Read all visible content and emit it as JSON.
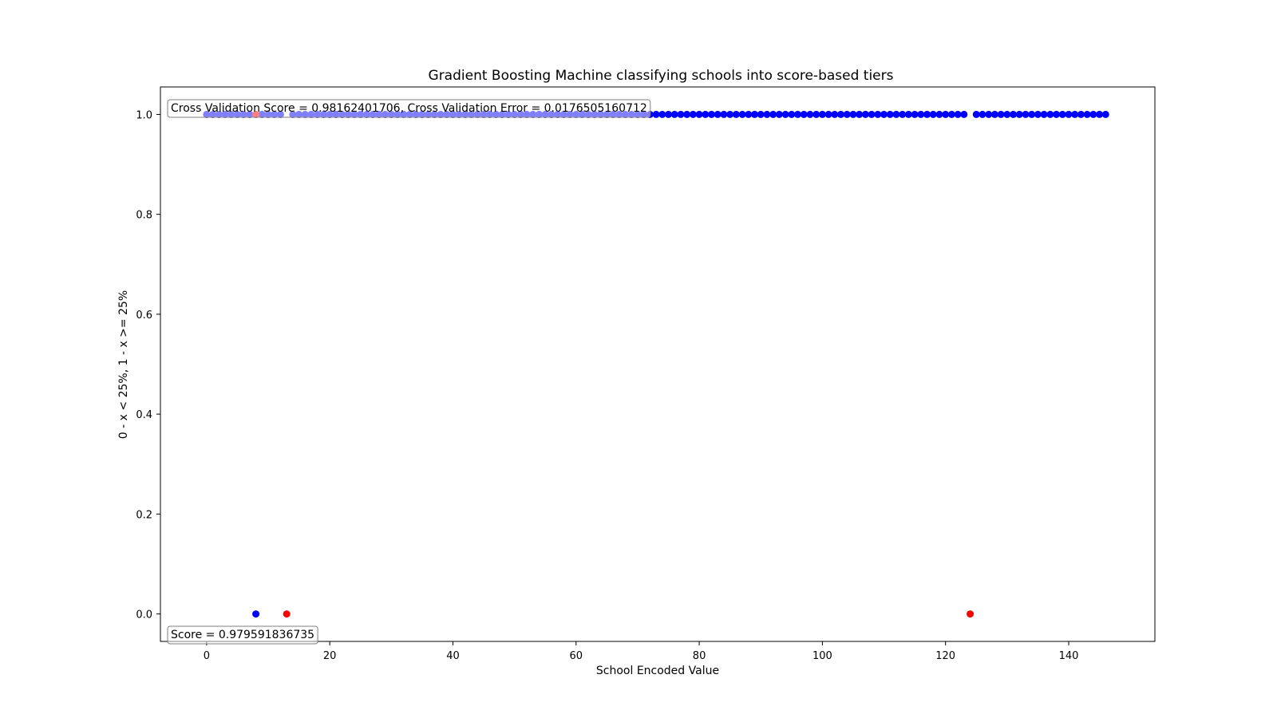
{
  "chart_data": {
    "type": "scatter",
    "title": "Gradient Boosting Machine classifying schools into score-based tiers",
    "xlabel": "School Encoded Value",
    "ylabel": "0 - x < 25%, 1 - x >= 25%",
    "xlim": [
      -7.5,
      154
    ],
    "ylim": [
      -0.055,
      1.055
    ],
    "x_ticks": [
      "0",
      "20",
      "40",
      "60",
      "80",
      "100",
      "120",
      "140"
    ],
    "y_ticks": [
      "0.0",
      "0.2",
      "0.4",
      "0.6",
      "0.8",
      "1.0"
    ],
    "grid": false,
    "series": [
      {
        "color": "#0000ff",
        "points": "all x 0–146 at y=1.0 except x=8 (y=0.0), x=13 and x=124 (absent)"
      },
      {
        "color": "#ff0000",
        "points": [
          [
            8,
            1.0
          ],
          [
            13,
            0.0
          ],
          [
            124,
            0.0
          ]
        ]
      }
    ],
    "annotations": [
      "Cross Validation Score = 0.98162401706, Cross Validation Error = 0.0176505160712",
      "Score = 0.979591836735"
    ]
  }
}
